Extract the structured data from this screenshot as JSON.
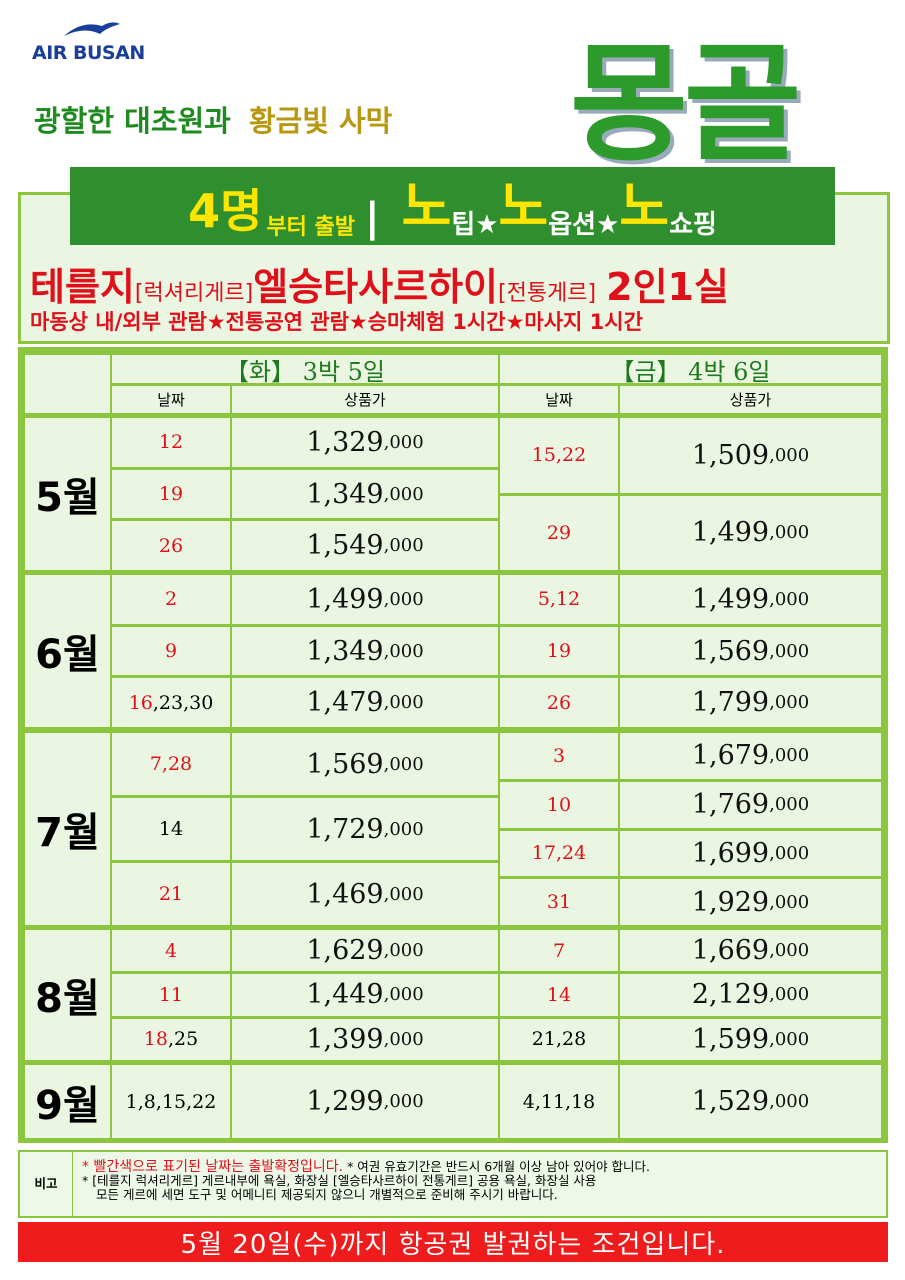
{
  "header": {
    "logo": "AIR BUSAN",
    "tagline": [
      "광할한 대초원과",
      "황금빛 사막"
    ],
    "title": "몽골"
  },
  "banner": {
    "segments": [
      "4명",
      "부터 출발",
      "|",
      "노",
      "팁★",
      "노",
      "옵션★",
      "노",
      "쇼핑"
    ]
  },
  "hotels": {
    "segments": [
      "테를지",
      "[럭셔리게르]",
      "엘승타사르하이",
      "[전통게르]",
      "2인1실"
    ]
  },
  "features": "마동상 내/외부 관람★전통공연 관람★승마체험 1시간★마사지 1시간",
  "table": {
    "columns": [
      {
        "title": "【화】 3박 5일",
        "date": "날짜",
        "price": "상품가"
      },
      {
        "title": "【금】 4박 6일",
        "date": "날짜",
        "price": "상품가"
      }
    ],
    "months": [
      {
        "label": "5월",
        "tue": [
          {
            "date": [
              {
                "t": "12",
                "c": true
              }
            ],
            "price": "1,329",
            "unit": ",000"
          },
          {
            "date": [
              {
                "t": "19",
                "c": true
              }
            ],
            "price": "1,349",
            "unit": ",000"
          },
          {
            "date": [
              {
                "t": "26",
                "c": true
              }
            ],
            "price": "1,549",
            "unit": ",000"
          }
        ],
        "fri": [
          {
            "date": [
              {
                "t": "15,22",
                "c": true
              }
            ],
            "price": "1,509",
            "unit": ",000"
          },
          {
            "date": [
              {
                "t": "29",
                "c": true
              }
            ],
            "price": "1,499",
            "unit": ",000"
          }
        ]
      },
      {
        "label": "6월",
        "tue": [
          {
            "date": [
              {
                "t": "2",
                "c": true
              }
            ],
            "price": "1,499",
            "unit": ",000"
          },
          {
            "date": [
              {
                "t": "9",
                "c": true
              }
            ],
            "price": "1,349",
            "unit": ",000"
          },
          {
            "date": [
              {
                "t": "16",
                "c": true
              },
              {
                "t": ",23,30",
                "c": false
              }
            ],
            "price": "1,479",
            "unit": ",000"
          }
        ],
        "fri": [
          {
            "date": [
              {
                "t": "5,12",
                "c": true
              }
            ],
            "price": "1,499",
            "unit": ",000"
          },
          {
            "date": [
              {
                "t": "19",
                "c": true
              }
            ],
            "price": "1,569",
            "unit": ",000"
          },
          {
            "date": [
              {
                "t": "26",
                "c": true
              }
            ],
            "price": "1,799",
            "unit": ",000"
          }
        ]
      },
      {
        "label": "7월",
        "tue": [
          {
            "date": [
              {
                "t": "7,28",
                "c": true
              }
            ],
            "price": "1,569",
            "unit": ",000"
          },
          {
            "date": [
              {
                "t": "14",
                "c": false
              }
            ],
            "price": "1,729",
            "unit": ",000"
          },
          {
            "date": [
              {
                "t": "21",
                "c": true
              }
            ],
            "price": "1,469",
            "unit": ",000"
          }
        ],
        "fri": [
          {
            "date": [
              {
                "t": "3",
                "c": true
              }
            ],
            "price": "1,679",
            "unit": ",000"
          },
          {
            "date": [
              {
                "t": "10",
                "c": true
              }
            ],
            "price": "1,769",
            "unit": ",000"
          },
          {
            "date": [
              {
                "t": "17,24",
                "c": true
              }
            ],
            "price": "1,699",
            "unit": ",000"
          },
          {
            "date": [
              {
                "t": "31",
                "c": true
              }
            ],
            "price": "1,929",
            "unit": ",000"
          }
        ]
      },
      {
        "label": "8월",
        "tue": [
          {
            "date": [
              {
                "t": "4",
                "c": true
              }
            ],
            "price": "1,629",
            "unit": ",000"
          },
          {
            "date": [
              {
                "t": "11",
                "c": true
              }
            ],
            "price": "1,449",
            "unit": ",000"
          },
          {
            "date": [
              {
                "t": "18",
                "c": true
              },
              {
                "t": ",25",
                "c": false
              }
            ],
            "price": "1,399",
            "unit": ",000"
          }
        ],
        "fri": [
          {
            "date": [
              {
                "t": "7",
                "c": true
              }
            ],
            "price": "1,669",
            "unit": ",000"
          },
          {
            "date": [
              {
                "t": "14",
                "c": true
              }
            ],
            "price": "2,129",
            "unit": ",000"
          },
          {
            "date": [
              {
                "t": "21,28",
                "c": false
              }
            ],
            "price": "1,599",
            "unit": ",000"
          }
        ]
      },
      {
        "label": "9월",
        "tue": [
          {
            "date": [
              {
                "t": "1,8,15,22",
                "c": false
              }
            ],
            "price": "1,299",
            "unit": ",000"
          }
        ],
        "fri": [
          {
            "date": [
              {
                "t": "4,11,18",
                "c": false
              }
            ],
            "price": "1,529",
            "unit": ",000"
          }
        ]
      }
    ]
  },
  "notes": {
    "label": "비고",
    "lines": [
      [
        "* 빨간색으로 표기된 날짜는 출발확정입니다.",
        " * 여권 유효기간은 반드시 6개월 이상 남아 있어야 합니다."
      ],
      [
        "* [테를지 럭셔리게르] 게르내부에 욕실, 화장실  [엘승타사르하이 전통게르] 공용 욕실, 화장실 사용"
      ],
      [
        "모든 게르에 세면 도구 및 어메니티 제공되지 않으니 개별적으로 준비해 주시기 바랍니다."
      ]
    ]
  },
  "footer": "5월 20일(수)까지 항공권 발권하는 조건입니다."
}
